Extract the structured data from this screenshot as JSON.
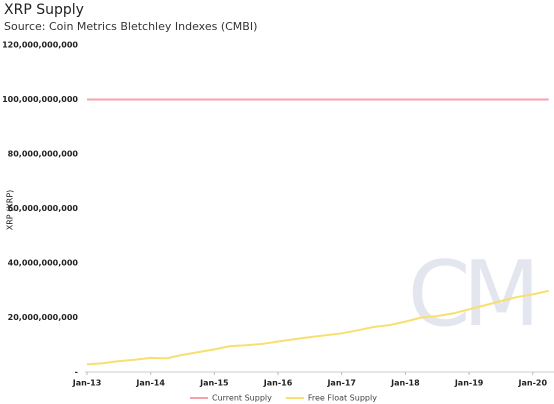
{
  "chart_data": {
    "type": "line",
    "title": "XRP Supply",
    "subtitle": "Source: Coin Metrics Bletchley Indexes (CMBI)",
    "y_label": "XRP (XRP)",
    "watermark": "CM",
    "x": [
      "2013-01",
      "2013-04",
      "2013-07",
      "2013-10",
      "2014-01",
      "2014-04",
      "2014-07",
      "2014-10",
      "2015-01",
      "2015-04",
      "2015-07",
      "2015-10",
      "2016-01",
      "2016-04",
      "2016-07",
      "2016-10",
      "2017-01",
      "2017-04",
      "2017-07",
      "2017-10",
      "2018-01",
      "2018-04",
      "2018-07",
      "2018-10",
      "2019-01",
      "2019-04",
      "2019-07",
      "2019-10",
      "2020-01",
      "2020-04"
    ],
    "series": [
      {
        "name": "Current Supply",
        "color": "#f4a3aa",
        "values": [
          100000000000,
          100000000000,
          100000000000,
          100000000000,
          100000000000,
          100000000000,
          100000000000,
          100000000000,
          100000000000,
          100000000000,
          100000000000,
          100000000000,
          100000000000,
          100000000000,
          100000000000,
          100000000000,
          100000000000,
          100000000000,
          100000000000,
          100000000000,
          100000000000,
          100000000000,
          100000000000,
          100000000000,
          100000000000,
          100000000000,
          100000000000,
          100000000000,
          100000000000,
          100000000000
        ]
      },
      {
        "name": "Free Float Supply",
        "color": "#f8df6e",
        "values": [
          2800000000,
          3200000000,
          4000000000,
          4500000000,
          5200000000,
          5000000000,
          6300000000,
          7300000000,
          8300000000,
          9500000000,
          9800000000,
          10300000000,
          11200000000,
          12000000000,
          12800000000,
          13500000000,
          14200000000,
          15300000000,
          16500000000,
          17200000000,
          18500000000,
          20000000000,
          20500000000,
          21500000000,
          23000000000,
          24500000000,
          26000000000,
          27500000000,
          28500000000,
          29800000000
        ]
      }
    ],
    "xlim": [
      "2013-01",
      "2020-05"
    ],
    "xticks": [
      {
        "value": "2013-01",
        "label": "Jan-13"
      },
      {
        "value": "2014-01",
        "label": "Jan-14"
      },
      {
        "value": "2015-01",
        "label": "Jan-15"
      },
      {
        "value": "2016-01",
        "label": "Jan-16"
      },
      {
        "value": "2017-01",
        "label": "Jan-17"
      },
      {
        "value": "2018-01",
        "label": "Jan-18"
      },
      {
        "value": "2019-01",
        "label": "Jan-19"
      },
      {
        "value": "2020-01",
        "label": "Jan-20"
      }
    ],
    "ylim": [
      0,
      120000000000
    ],
    "yticks": [
      {
        "value": 0,
        "label": "-"
      },
      {
        "value": 20000000000,
        "label": "20,000,000,000"
      },
      {
        "value": 40000000000,
        "label": "40,000,000,000"
      },
      {
        "value": 60000000000,
        "label": "60,000,000,000"
      },
      {
        "value": 80000000000,
        "label": "80,000,000,000"
      },
      {
        "value": 100000000000,
        "label": "100,000,000,000"
      },
      {
        "value": 120000000000,
        "label": "120,000,000,000"
      }
    ],
    "grid": false,
    "legend": "bottom"
  }
}
